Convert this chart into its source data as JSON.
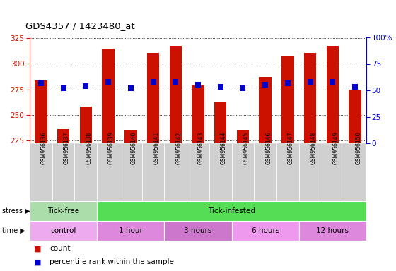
{
  "title": "GDS4357 / 1423480_at",
  "samples": [
    "GSM956136",
    "GSM956137",
    "GSM956138",
    "GSM956139",
    "GSM956140",
    "GSM956141",
    "GSM956142",
    "GSM956143",
    "GSM956144",
    "GSM956145",
    "GSM956146",
    "GSM956147",
    "GSM956148",
    "GSM956149",
    "GSM956150"
  ],
  "count_values": [
    284,
    236,
    258,
    315,
    235,
    311,
    318,
    279,
    263,
    235,
    287,
    307,
    311,
    318,
    275
  ],
  "percentile_values": [
    57,
    52,
    54,
    58,
    52,
    58,
    58,
    55,
    53,
    52,
    55,
    57,
    58,
    58,
    53
  ],
  "ymin": 222,
  "ymax": 326,
  "yticks": [
    225,
    250,
    275,
    300,
    325
  ],
  "y2ticks": [
    0,
    25,
    50,
    75,
    100
  ],
  "bar_color": "#cc1100",
  "dot_color": "#0000cc",
  "xlabels_bg": "#d0d0d0",
  "stress_segments": [
    {
      "label": "Tick-free",
      "start": 0,
      "end": 3,
      "color": "#aaddaa"
    },
    {
      "label": "Tick-infested",
      "start": 3,
      "end": 15,
      "color": "#55dd55"
    }
  ],
  "time_segments": [
    {
      "label": "control",
      "start": 0,
      "end": 3,
      "color": "#eeaaee"
    },
    {
      "label": "1 hour",
      "start": 3,
      "end": 6,
      "color": "#dd88dd"
    },
    {
      "label": "3 hours",
      "start": 6,
      "end": 9,
      "color": "#cc77cc"
    },
    {
      "label": "6 hours",
      "start": 9,
      "end": 12,
      "color": "#ee99ee"
    },
    {
      "label": "12 hours",
      "start": 12,
      "end": 15,
      "color": "#dd88dd"
    }
  ],
  "legend_count_label": "count",
  "legend_pct_label": "percentile rank within the sample",
  "stress_label": "stress",
  "time_label": "time",
  "bar_width": 0.55,
  "dot_size": 40,
  "left_axis_color": "#cc1100",
  "right_axis_color": "#0000cc",
  "chart_bg": "#ffffff",
  "fig_bg": "#ffffff"
}
